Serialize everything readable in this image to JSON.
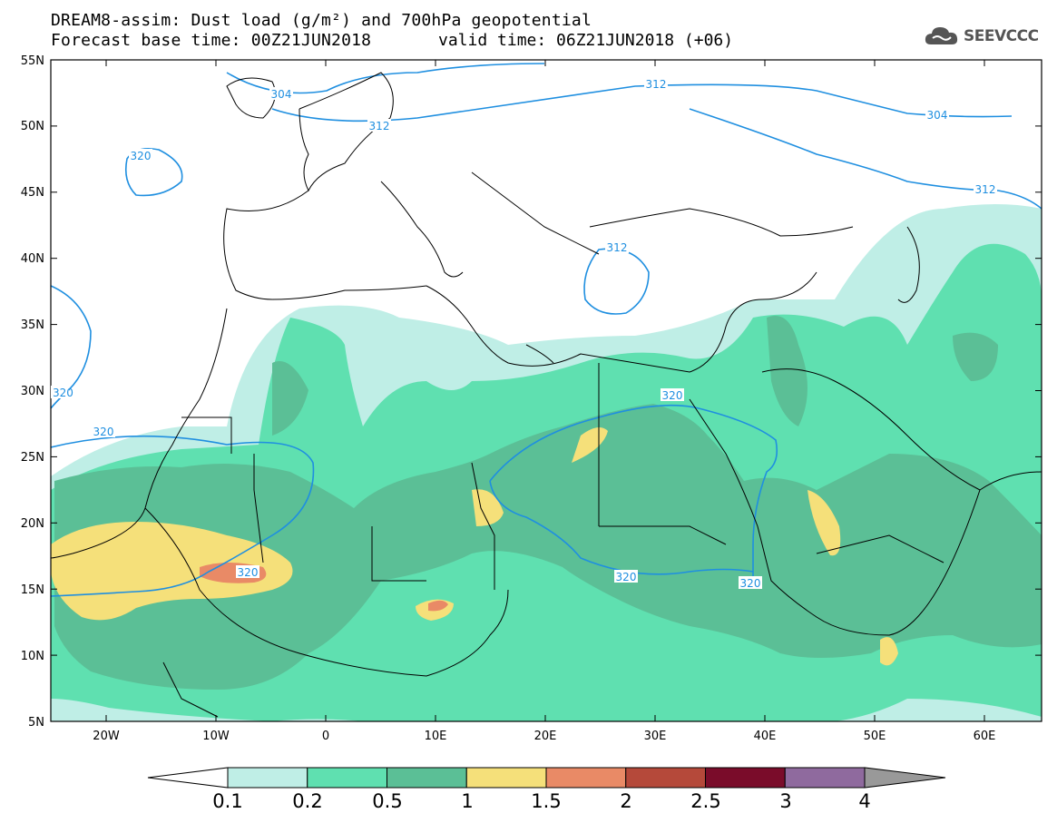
{
  "title": {
    "line1": "DREAM8-assim: Dust load (g/m²) and 700hPa geopotential",
    "line2_left": "Forecast base time: 00Z21JUN2018",
    "line2_right": "valid time: 06Z21JUN2018 (+06)"
  },
  "logo": {
    "icon": "cloud-icon",
    "text": "SEEVCCC"
  },
  "map": {
    "lat_labels": [
      "55N",
      "50N",
      "45N",
      "40N",
      "35N",
      "30N",
      "25N",
      "20N",
      "15N",
      "10N",
      "5N"
    ],
    "lon_labels": [
      "20W",
      "10W",
      "0",
      "10E",
      "20E",
      "30E",
      "40E",
      "50E",
      "60E"
    ],
    "contour_labels": [
      "304",
      "312",
      "312",
      "320",
      "312",
      "320",
      "320",
      "320",
      "320",
      "304",
      "312",
      "320",
      "320"
    ],
    "contour_color": "#1f8fe0"
  },
  "colorbar": {
    "labels": [
      "0.1",
      "0.2",
      "0.5",
      "1",
      "1.5",
      "2",
      "2.5",
      "3",
      "4"
    ],
    "colors": [
      "#ffffff",
      "#bfeee6",
      "#5fe0b0",
      "#5bbf96",
      "#f5e07a",
      "#e98a66",
      "#b5493a",
      "#7a0c2a",
      "#8f6a9e",
      "#999999"
    ]
  }
}
